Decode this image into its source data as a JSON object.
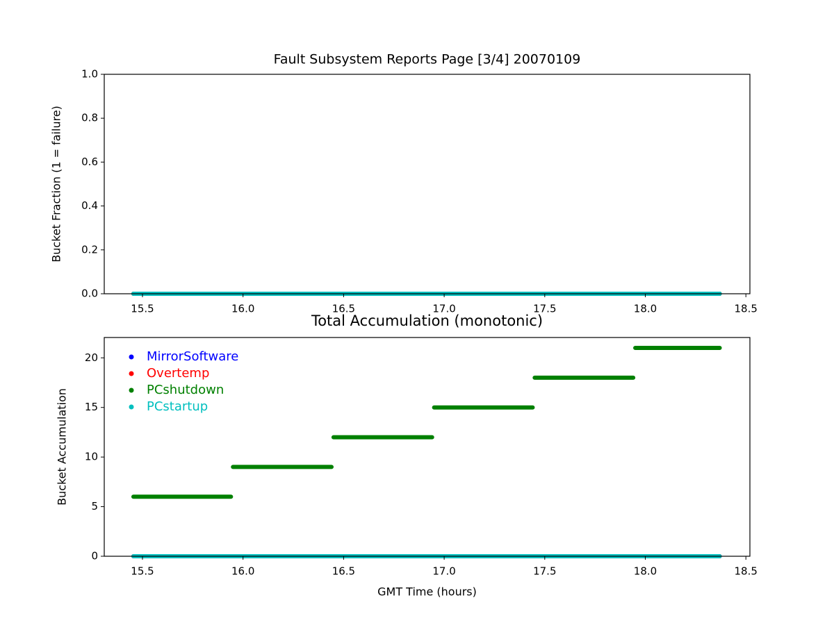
{
  "chart_data": [
    {
      "type": "line",
      "title": "Fault Subsystem Reports Page [3/4] 20070109",
      "ylabel": "Bucket Fraction (1 = failure)",
      "x": [
        15.455,
        15.94,
        15.945,
        15.95,
        16.44,
        16.445,
        16.45,
        16.94,
        16.945,
        16.95,
        17.44,
        17.445,
        17.45,
        17.94,
        17.945,
        17.95,
        18.37
      ],
      "series": [
        {
          "name": "MirrorSoftware",
          "color": "#0000ff",
          "values": [
            0,
            0,
            0,
            0,
            0,
            0,
            0,
            0,
            0,
            0,
            0,
            0,
            0,
            0,
            0,
            0,
            0
          ]
        },
        {
          "name": "Overtemp",
          "color": "#ff0000",
          "values": [
            0,
            0,
            0,
            0,
            0,
            0,
            0,
            0,
            0,
            0,
            0,
            0,
            0,
            0,
            0,
            0,
            0
          ]
        },
        {
          "name": "PCshutdown",
          "color": "#008000",
          "values": [
            0,
            0,
            0,
            0,
            0,
            0,
            0,
            0,
            0,
            0,
            0,
            0,
            0,
            0,
            0,
            0,
            0
          ]
        },
        {
          "name": "PCstartup",
          "color": "#00bfbf",
          "values": [
            0,
            0,
            0,
            0,
            0,
            0,
            0,
            0,
            0,
            0,
            0,
            0,
            0,
            0,
            0,
            0,
            0
          ]
        }
      ],
      "xlim": [
        15.31,
        18.52
      ],
      "ylim": [
        0,
        1
      ],
      "xticks": [
        15.5,
        {
          "value": 16,
          "label": "16.0"
        },
        16.5,
        {
          "value": 17,
          "label": "17.0"
        },
        17.5,
        {
          "value": 18,
          "label": "18.0"
        },
        18.5
      ],
      "yticks": [
        {
          "value": 0,
          "label": "0.0"
        },
        {
          "value": 0.2,
          "label": "0.2"
        },
        {
          "value": 0.4,
          "label": "0.4"
        },
        {
          "value": 0.6,
          "label": "0.6"
        },
        {
          "value": 0.8,
          "label": "0.8"
        },
        {
          "value": 1,
          "label": "1.0"
        }
      ]
    },
    {
      "type": "line",
      "title": "Total Accumulation (monotonic)",
      "ylabel": "Bucket Accumulation",
      "xlabel": "GMT Time (hours)",
      "x": [
        15.455,
        15.94,
        15.945,
        15.95,
        16.44,
        16.445,
        16.45,
        16.94,
        16.945,
        16.95,
        17.44,
        17.445,
        17.45,
        17.94,
        17.945,
        17.95,
        18.37
      ],
      "series": [
        {
          "name": "MirrorSoftware",
          "color": "#0000ff",
          "values": [
            0,
            0,
            0,
            0,
            0,
            0,
            0,
            0,
            0,
            0,
            0,
            0,
            0,
            0,
            0,
            0,
            0
          ]
        },
        {
          "name": "Overtemp",
          "color": "#ff0000",
          "values": [
            0,
            0,
            0,
            0,
            0,
            0,
            0,
            0,
            0,
            0,
            0,
            0,
            0,
            0,
            0,
            0,
            0
          ]
        },
        {
          "name": "PCshutdown",
          "color": "#008000",
          "values": [
            6,
            6,
            null,
            9,
            9,
            null,
            12,
            12,
            null,
            15,
            15,
            null,
            18,
            18,
            null,
            21,
            21
          ]
        },
        {
          "name": "PCstartup",
          "color": "#00bfbf",
          "values": [
            0,
            0,
            0,
            0,
            0,
            0,
            0,
            0,
            0,
            0,
            0,
            0,
            0,
            0,
            0,
            0,
            0
          ]
        }
      ],
      "xlim": [
        15.31,
        18.52
      ],
      "ylim": [
        0,
        22.05
      ],
      "xticks": [
        15.5,
        {
          "value": 16,
          "label": "16.0"
        },
        16.5,
        {
          "value": 17,
          "label": "17.0"
        },
        17.5,
        {
          "value": 18,
          "label": "18.0"
        },
        18.5
      ],
      "yticks": [
        0,
        5,
        10,
        15,
        20
      ],
      "legend": "upper left"
    }
  ]
}
